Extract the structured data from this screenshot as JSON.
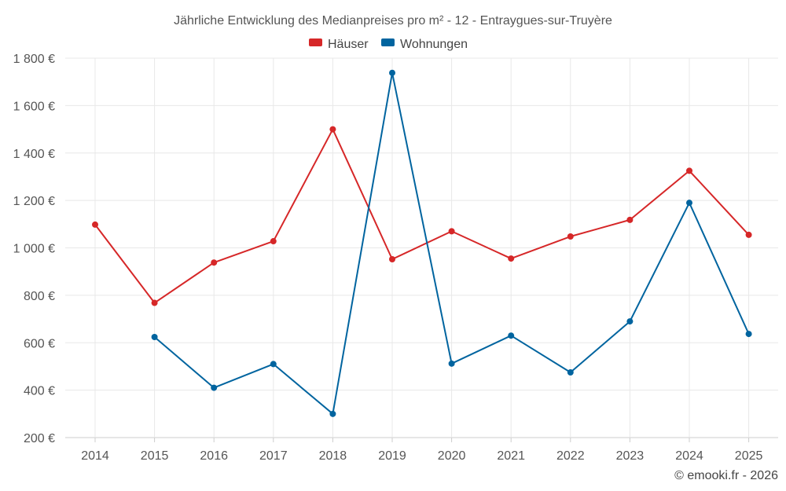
{
  "chart_data": {
    "type": "line",
    "title": "Jährliche Entwicklung des Medianpreises pro m² - 12 - Entraygues-sur-Truyère",
    "categories": [
      "2014",
      "2015",
      "2016",
      "2017",
      "2018",
      "2019",
      "2020",
      "2021",
      "2022",
      "2023",
      "2024",
      "2025"
    ],
    "series": [
      {
        "name": "Häuser",
        "color": "#d62728",
        "values": [
          1098,
          768,
          938,
          1028,
          1500,
          952,
          1070,
          955,
          1048,
          1118,
          1325,
          1055
        ]
      },
      {
        "name": "Wohnungen",
        "color": "#00649f",
        "values": [
          null,
          624,
          410,
          510,
          300,
          1738,
          512,
          630,
          475,
          690,
          1190,
          637
        ]
      }
    ],
    "ylim": [
      200,
      1800
    ],
    "yticks": [
      200,
      400,
      600,
      800,
      1000,
      1200,
      1400,
      1600,
      1800
    ],
    "ytick_labels": [
      "200 €",
      "400 €",
      "600 €",
      "800 €",
      "1 000 €",
      "1 200 €",
      "1 400 €",
      "1 600 €",
      "1 800 €"
    ],
    "grid": true,
    "legend_position": "top-center",
    "xlabel": "",
    "ylabel": ""
  },
  "credit": "© emooki.fr - 2026"
}
